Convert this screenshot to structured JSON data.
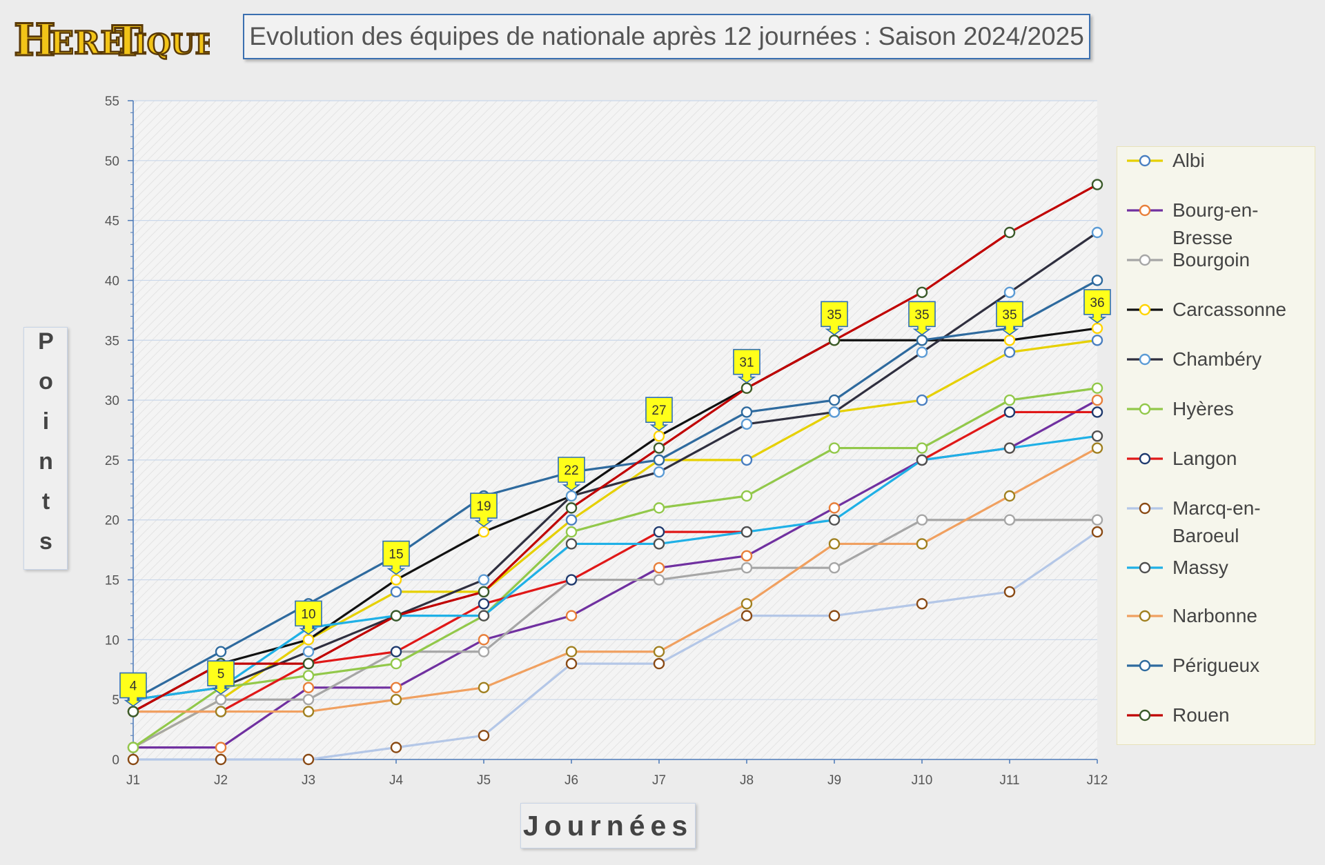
{
  "logo": {
    "text": "Heretiques",
    "display": "HERETIQUES"
  },
  "header": {
    "title": "Evolution des équipes de nationale après 12 journées : Saison 2024/2025"
  },
  "colors": {
    "label_fill": "#ffff1a",
    "label_border": "#2e6eb5",
    "plot_bg": "#f4f4f4",
    "grid": "#c9d7ea"
  },
  "chart_data": {
    "type": "line",
    "title": "Evolution des équipes de nationale après 12 journées : Saison 2024/2025",
    "xlabel": "Journées",
    "ylabel": "Points",
    "categories": [
      "J1",
      "J2",
      "J3",
      "J4",
      "J5",
      "J6",
      "J7",
      "J8",
      "J9",
      "J10",
      "J11",
      "J12"
    ],
    "ylim": [
      0,
      55
    ],
    "yticks": [
      0,
      5,
      10,
      15,
      20,
      25,
      30,
      35,
      40,
      45,
      50,
      55
    ],
    "grid": true,
    "legend_position": "right",
    "series": [
      {
        "name": "Albi",
        "line": "#e6d000",
        "marker": "#4a7fc0",
        "values": [
          1,
          5,
          10,
          14,
          14,
          20,
          25,
          25,
          29,
          30,
          34,
          35
        ]
      },
      {
        "name": "Bourg-en-Bresse",
        "line": "#7030a0",
        "marker": "#e87f3a",
        "values": [
          1,
          1,
          6,
          6,
          10,
          12,
          16,
          17,
          21,
          25,
          26,
          30
        ]
      },
      {
        "name": "Bourgoin",
        "line": "#a6a6a6",
        "marker": "#a6a6a6",
        "values": [
          1,
          5,
          5,
          9,
          9,
          15,
          15,
          16,
          16,
          20,
          20,
          20
        ]
      },
      {
        "name": "Carcassonne",
        "line": "#111111",
        "marker": "#ffd400",
        "values": [
          4,
          8,
          10,
          15,
          19,
          22,
          27,
          31,
          35,
          35,
          35,
          36
        ]
      },
      {
        "name": "Chambéry",
        "line": "#2f2f3f",
        "marker": "#5b9bd5",
        "values": [
          5,
          6,
          9,
          12,
          15,
          22,
          24,
          28,
          29,
          34,
          39,
          44
        ]
      },
      {
        "name": "Hyères",
        "line": "#92c84a",
        "marker": "#92c84a",
        "values": [
          1,
          6,
          7,
          8,
          12,
          19,
          21,
          22,
          26,
          26,
          30,
          31
        ]
      },
      {
        "name": "Langon",
        "line": "#e01818",
        "marker": "#1f3a6e",
        "values": [
          4,
          4,
          8,
          9,
          13,
          15,
          19,
          19,
          null,
          25,
          29,
          29
        ]
      },
      {
        "name": "Marcq-en-Baroeul",
        "line": "#b4c7e7",
        "marker": "#8a4a14",
        "values": [
          0,
          0,
          0,
          1,
          2,
          8,
          8,
          12,
          12,
          13,
          14,
          19
        ]
      },
      {
        "name": "Massy",
        "line": "#1fb0e6",
        "marker": "#505050",
        "values": [
          5,
          6,
          11,
          12,
          12,
          18,
          18,
          19,
          20,
          25,
          26,
          27
        ]
      },
      {
        "name": "Narbonne",
        "line": "#f0a060",
        "marker": "#a08020",
        "values": [
          4,
          4,
          4,
          5,
          6,
          9,
          9,
          13,
          18,
          18,
          22,
          26
        ]
      },
      {
        "name": "Périgueux",
        "line": "#2e6a9e",
        "marker": "#2e6a9e",
        "values": [
          5,
          9,
          13,
          17,
          22,
          24,
          25,
          29,
          30,
          35,
          36,
          40
        ]
      },
      {
        "name": "Rouen",
        "line": "#c00000",
        "marker": "#3a5a2a",
        "values": [
          4,
          8,
          8,
          12,
          14,
          21,
          26,
          31,
          35,
          39,
          44,
          48
        ]
      }
    ],
    "leader_labels": [
      {
        "x": "J1",
        "value": 4
      },
      {
        "x": "J2",
        "value": 5
      },
      {
        "x": "J3",
        "value": 10
      },
      {
        "x": "J4",
        "value": 15
      },
      {
        "x": "J5",
        "value": 19
      },
      {
        "x": "J6",
        "value": 22
      },
      {
        "x": "J7",
        "value": 27
      },
      {
        "x": "J8",
        "value": 31
      },
      {
        "x": "J9",
        "value": 35
      },
      {
        "x": "J10",
        "value": 35
      },
      {
        "x": "J11",
        "value": 35
      },
      {
        "x": "J12",
        "value": 36
      }
    ]
  }
}
